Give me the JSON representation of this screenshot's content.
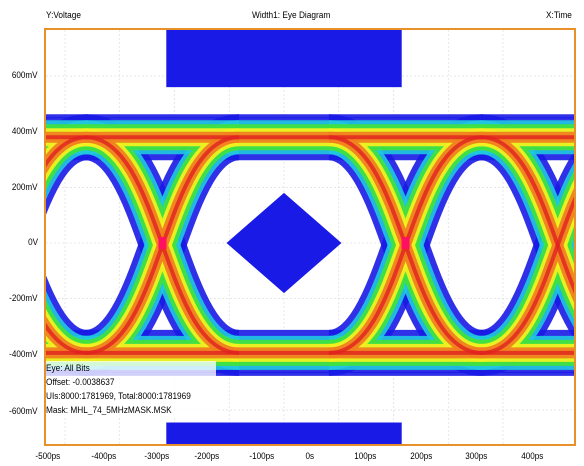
{
  "header": {
    "y_label": "Y:Voltage",
    "title": "Width1: Eye Diagram",
    "x_label": "X:Time"
  },
  "y_ticks": [
    "600mV",
    "400mV",
    "200mV",
    "0V",
    "-200mV",
    "-400mV",
    "-600mV"
  ],
  "x_ticks": [
    "-500ps",
    "-400ps",
    "-300ps",
    "-200ps",
    "-100ps",
    "0s",
    "100ps",
    "200ps",
    "300ps",
    "400ps"
  ],
  "info": {
    "eye": "Eye: All Bits",
    "offset": "Offset: -0.0038637",
    "uis": "UIs:8000:1781969, Total:8000:1781969",
    "mask": "Mask: MHL_74_5MHzMASK.MSK"
  },
  "colors": {
    "frame": "#e8902a",
    "mask": "#1a1ae6",
    "grid": "#d8d8d8",
    "density": [
      "#1a1ae6",
      "#20c8e0",
      "#40e040",
      "#f0f020",
      "#f08020",
      "#e02020",
      "#ff1060"
    ]
  }
}
